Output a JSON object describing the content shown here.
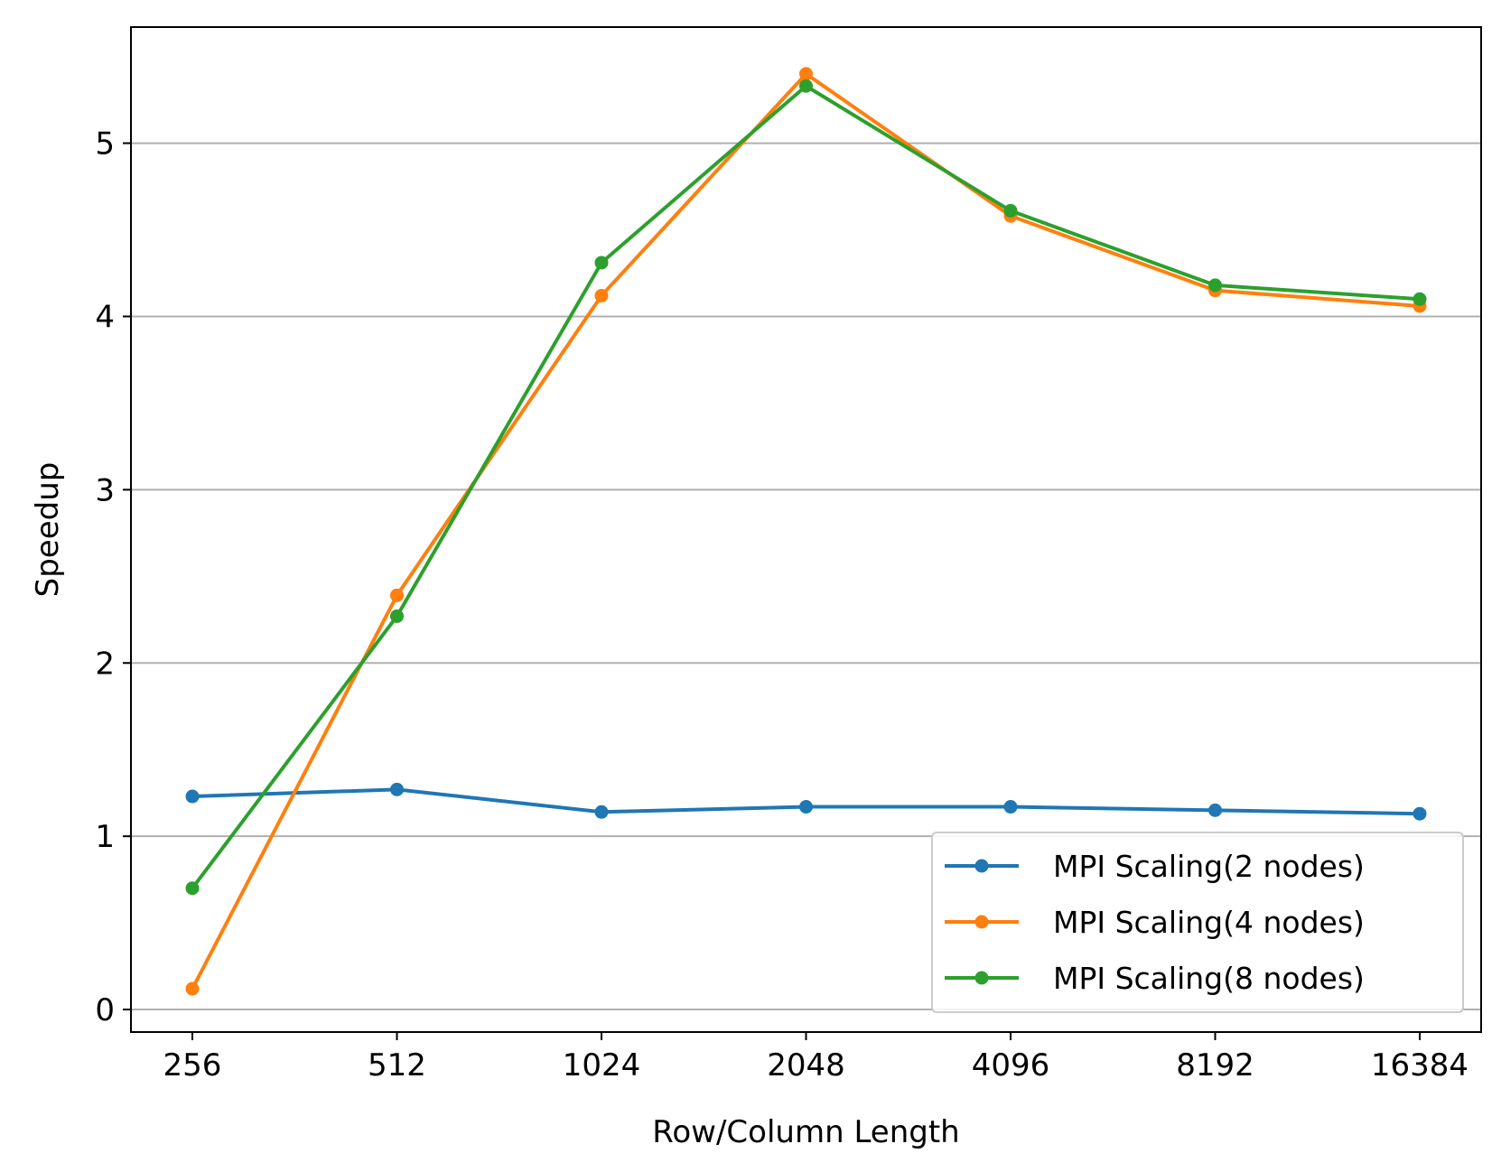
{
  "chart_data": {
    "type": "line",
    "title": "",
    "xlabel": "Row/Column Length",
    "ylabel": "Speedup",
    "categories": [
      "256",
      "512",
      "1024",
      "2048",
      "4096",
      "8192",
      "16384"
    ],
    "ylim": [
      -0.13,
      5.67
    ],
    "yticks": [
      0,
      1,
      2,
      3,
      4,
      5
    ],
    "grid": "y-major",
    "legend_position": "lower-right",
    "series": [
      {
        "name": "MPI Scaling(2 nodes)",
        "color": "#1f77b4",
        "values": [
          1.23,
          1.27,
          1.14,
          1.17,
          1.17,
          1.15,
          1.13
        ]
      },
      {
        "name": "MPI Scaling(4 nodes)",
        "color": "#ff7f0e",
        "values": [
          0.12,
          2.39,
          4.12,
          5.4,
          4.58,
          4.15,
          4.06
        ]
      },
      {
        "name": "MPI Scaling(8 nodes)",
        "color": "#2ca02c",
        "values": [
          0.7,
          2.27,
          4.31,
          5.33,
          4.61,
          4.18,
          4.1
        ]
      }
    ]
  }
}
